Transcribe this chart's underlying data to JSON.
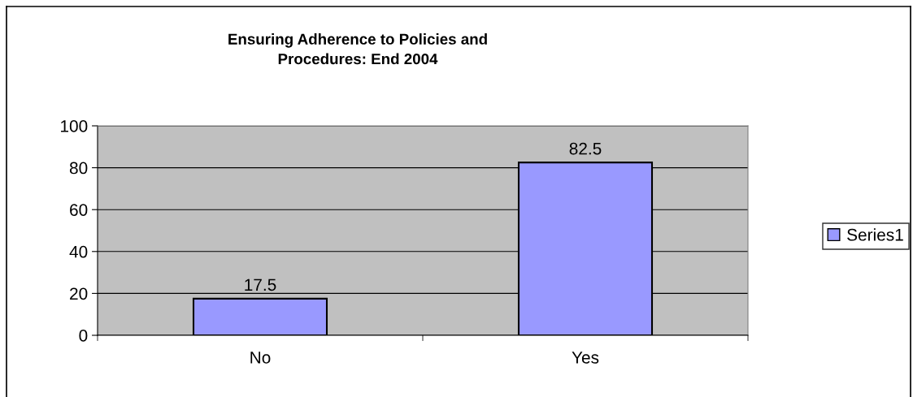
{
  "chart_data": {
    "type": "bar",
    "title": "Ensuring Adherence to Policies and\nProcedures: End 2004",
    "categories": [
      "No",
      "Yes"
    ],
    "series": [
      {
        "name": "Series1",
        "color": "#9999ff",
        "values": [
          17.5,
          82.5
        ]
      }
    ],
    "ylim": [
      0,
      100
    ],
    "yticks": [
      0,
      20,
      40,
      60,
      80,
      100
    ],
    "grid": "y",
    "legend": "right",
    "data_labels": true
  }
}
